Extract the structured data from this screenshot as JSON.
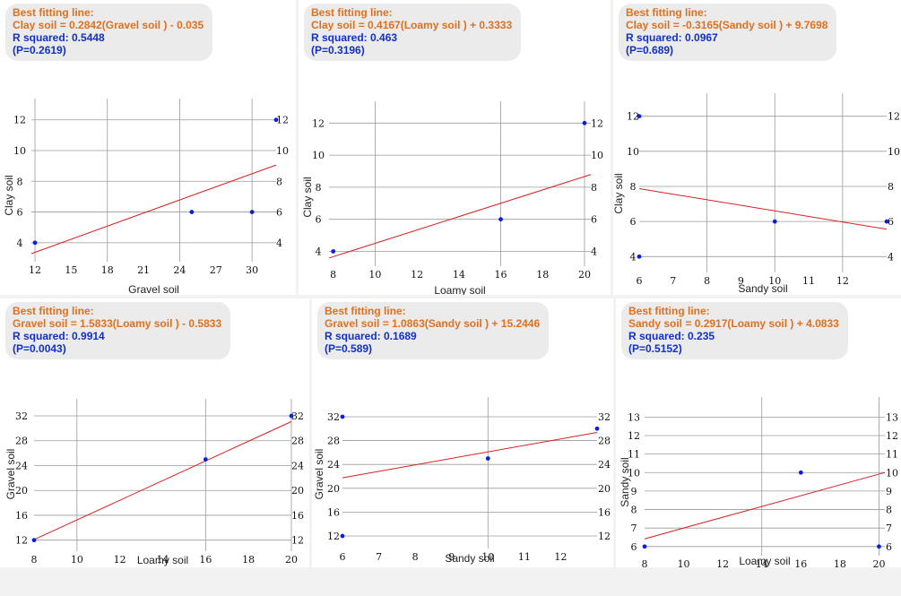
{
  "colors": {
    "equation": "#e0701e",
    "stats": "#1030c8",
    "fit_line": "#d62020",
    "points": "#0a1ee0",
    "grid": "#9a9a9a"
  },
  "chart_data": [
    {
      "type": "scatter",
      "title": "Best fitting line:",
      "equation": "Clay soil  = 0.2842(Gravel soil ) - 0.035",
      "r_squared": "R squared: 0.5448",
      "p_value": "(P=0.2619)",
      "xlabel": "Gravel soil",
      "ylabel": "Clay soil",
      "xlim": [
        11.7,
        32
      ],
      "ylim": [
        3,
        12.8
      ],
      "xticks": [
        12,
        15,
        18,
        21,
        24,
        27,
        30
      ],
      "xgrid": [
        12,
        18,
        24,
        30
      ],
      "yticks": [
        4,
        6,
        8,
        10,
        12
      ],
      "yticks_right": [
        4,
        6,
        8,
        10,
        12
      ],
      "points": [
        [
          12,
          4
        ],
        [
          25,
          6
        ],
        [
          30,
          6
        ],
        [
          32,
          12
        ]
      ],
      "fit": {
        "slope": 0.2842,
        "intercept": -0.035
      }
    },
    {
      "type": "scatter",
      "title": "Best fitting line:",
      "equation": "Clay soil  = 0.4167(Loamy soil ) + 0.3333",
      "r_squared": "R squared: 0.463",
      "p_value": "(P=0.3196)",
      "xlabel": "Loamy soil",
      "ylabel": "Clay soil",
      "xlim": [
        7.8,
        20.3
      ],
      "ylim": [
        3.3,
        12.8
      ],
      "xticks": [
        8,
        10,
        12,
        14,
        16,
        18,
        20
      ],
      "xgrid": [
        10,
        16,
        20
      ],
      "yticks": [
        4,
        6,
        8,
        10,
        12
      ],
      "yticks_right": [
        4,
        6,
        8,
        10,
        12
      ],
      "points": [
        [
          8,
          4
        ],
        [
          16,
          6
        ],
        [
          20,
          12
        ]
      ],
      "fit": {
        "slope": 0.4167,
        "intercept": 0.3333
      }
    },
    {
      "type": "scatter",
      "title": "Best fitting line:",
      "equation": "Clay soil  = -0.3165(Sandy soil ) + 9.7698",
      "r_squared": "R squared: 0.0967",
      "p_value": "(P=0.689)",
      "xlabel": "Sandy soil",
      "ylabel": "Clay soil",
      "xlim": [
        6,
        13.3
      ],
      "ylim": [
        3.3,
        12.8
      ],
      "xticks": [
        6,
        7,
        8,
        9,
        10,
        11,
        12
      ],
      "xgrid": [
        8,
        10,
        12
      ],
      "yticks": [
        4,
        6,
        8,
        10,
        12
      ],
      "yticks_right": [
        4,
        6,
        8,
        10,
        12
      ],
      "points": [
        [
          6,
          4
        ],
        [
          10,
          6
        ],
        [
          13.3,
          6
        ],
        [
          6,
          12
        ]
      ],
      "fit": {
        "slope": -0.3165,
        "intercept": 9.7698
      }
    },
    {
      "type": "scatter",
      "title": "Best fitting line:",
      "equation": "Gravel soil  = 1.5833(Loamy soil ) - 0.5833",
      "r_squared": "R squared: 0.9914",
      "p_value": "(P=0.0043)",
      "xlabel": "Loamy soil",
      "ylabel": "Gravel soil",
      "xlim": [
        8,
        20
      ],
      "ylim": [
        10.8,
        33.3
      ],
      "xticks": [
        8,
        10,
        12,
        14,
        16,
        18,
        20
      ],
      "xgrid": [
        10,
        16,
        20
      ],
      "yticks": [
        12,
        16,
        20,
        24,
        28,
        32
      ],
      "yticks_right": [
        12,
        16,
        20,
        24,
        28,
        32
      ],
      "points": [
        [
          8,
          12
        ],
        [
          16,
          25
        ],
        [
          20,
          32
        ]
      ],
      "fit": {
        "slope": 1.5833,
        "intercept": -0.5833
      }
    },
    {
      "type": "scatter",
      "title": "Best fitting line:",
      "equation": "Gravel  soil  = 1.0863(Sandy soil ) + 15.2446",
      "r_squared": "R squared: 0.1689",
      "p_value": "(P=0.589)",
      "xlabel": "Sandy soil",
      "ylabel": "Gravel soil",
      "xlim": [
        6,
        13
      ],
      "ylim": [
        10.5,
        33.8
      ],
      "xticks": [
        6,
        7,
        8,
        9,
        10,
        11,
        12
      ],
      "xgrid": [
        10
      ],
      "yticks": [
        12,
        16,
        20,
        24,
        28,
        32
      ],
      "yticks_right": [
        12,
        16,
        20,
        24,
        28,
        32
      ],
      "points": [
        [
          6,
          12
        ],
        [
          10,
          25
        ],
        [
          13,
          30
        ],
        [
          6,
          32
        ]
      ],
      "fit": {
        "slope": 1.0863,
        "intercept": 15.2446
      }
    },
    {
      "type": "scatter",
      "title": "Best fitting line:",
      "equation": "Sandy soil  = 0.2917(Loamy soil ) + 4.0833",
      "r_squared": "R squared: 0.235",
      "p_value": "(P=0.5152)",
      "xlabel": "Loamy soil",
      "ylabel": "Sandy soil",
      "xlim": [
        8,
        20.3
      ],
      "ylim": [
        5.7,
        13.6
      ],
      "xticks": [
        8,
        10,
        12,
        14,
        16,
        18,
        20
      ],
      "xgrid": [
        14,
        20
      ],
      "yticks": [
        6,
        7,
        8,
        9,
        10,
        11,
        12,
        13
      ],
      "yticks_right": [
        6,
        7,
        8,
        9,
        10,
        11,
        12,
        13
      ],
      "points": [
        [
          8,
          6
        ],
        [
          16,
          10
        ],
        [
          20,
          6
        ]
      ],
      "fit": {
        "slope": 0.2917,
        "intercept": 4.0833
      }
    }
  ]
}
